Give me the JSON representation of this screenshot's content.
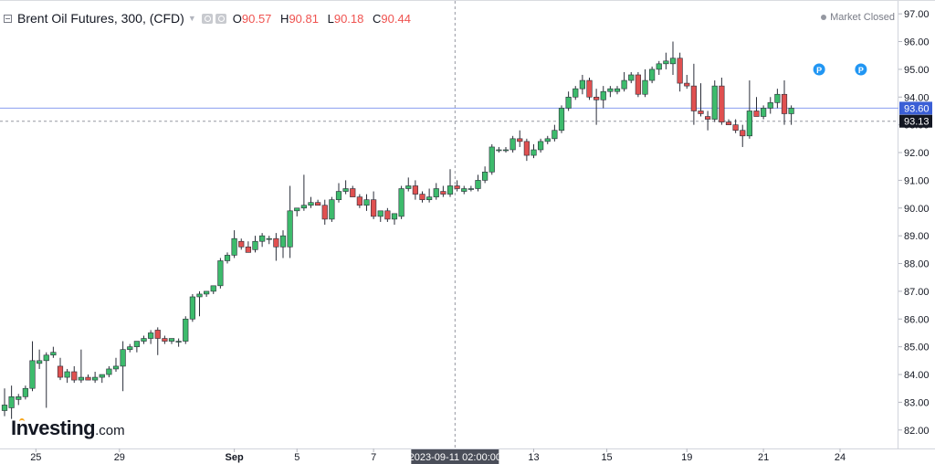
{
  "legend": {
    "title": "Brent Oil Futures, 300, (CFD)",
    "open_key": "O",
    "open": "90.57",
    "high_key": "H",
    "high": "90.81",
    "low_key": "L",
    "low": "90.18",
    "close_key": "C",
    "close": "90.44",
    "value_color": "#ef5350"
  },
  "status": "Market Closed",
  "brand": {
    "name": "Investing",
    "domain": ".com"
  },
  "crosshair_label": "2023-09-11 02:00:00",
  "icons": [
    "collapse-icon",
    "dropdown-caret-icon",
    "settings-icon",
    "source-icon",
    "status-dot-icon",
    "pivot-marker-icon"
  ],
  "colors": {
    "up": "#3dbb6c",
    "down": "#e05050",
    "wick": "#2a2e39",
    "price_line": "#8a9ef0",
    "price_label_bg": "#3b5fd6",
    "prev_close_label_bg": "#131722"
  },
  "chart_data": {
    "type": "candlestick",
    "title": "Brent Oil Futures, 300, (CFD)",
    "y_axis": {
      "ticks": [
        82.0,
        83.0,
        84.0,
        85.0,
        86.0,
        87.0,
        88.0,
        89.0,
        90.0,
        91.0,
        92.0,
        93.0,
        94.0,
        95.0,
        96.0,
        97.0
      ],
      "range": [
        81.4,
        97.4
      ],
      "side": "right"
    },
    "x_axis": {
      "ticks": [
        "25",
        "29",
        "Sep",
        "5",
        "7",
        "13",
        "15",
        "19",
        "21",
        "24"
      ]
    },
    "current_price": 93.6,
    "previous_close": 93.13,
    "markers": [
      {
        "label": "P",
        "bar": 117
      },
      {
        "label": "P",
        "bar": 123
      }
    ],
    "candles": [
      [
        82.7,
        83.5,
        82.5,
        82.9
      ],
      [
        82.8,
        83.6,
        82.4,
        83.2
      ],
      [
        83.1,
        83.3,
        82.9,
        83.2
      ],
      [
        83.2,
        83.6,
        83.1,
        83.5
      ],
      [
        83.5,
        85.2,
        83.4,
        84.5
      ],
      [
        84.4,
        84.9,
        84.2,
        84.5
      ],
      [
        84.5,
        84.8,
        82.8,
        84.7
      ],
      [
        84.7,
        85.0,
        84.6,
        84.8
      ],
      [
        84.3,
        84.6,
        83.8,
        83.9
      ],
      [
        83.9,
        84.2,
        83.7,
        84.1
      ],
      [
        84.1,
        84.3,
        83.7,
        83.8
      ],
      [
        83.8,
        84.9,
        83.7,
        83.9
      ],
      [
        83.9,
        84.0,
        83.8,
        83.8
      ],
      [
        83.8,
        84.1,
        83.7,
        83.9
      ],
      [
        83.9,
        84.0,
        83.7,
        84.0
      ],
      [
        84.0,
        84.3,
        83.9,
        84.2
      ],
      [
        84.2,
        84.6,
        84.1,
        84.3
      ],
      [
        84.3,
        85.2,
        83.4,
        84.9
      ],
      [
        84.9,
        85.1,
        84.8,
        85.0
      ],
      [
        85.0,
        85.2,
        84.8,
        85.2
      ],
      [
        85.2,
        85.4,
        85.1,
        85.3
      ],
      [
        85.3,
        85.6,
        85.1,
        85.5
      ],
      [
        85.6,
        85.7,
        84.7,
        85.3
      ],
      [
        85.3,
        85.4,
        85.1,
        85.2
      ],
      [
        85.2,
        85.3,
        85.1,
        85.3
      ],
      [
        85.2,
        85.3,
        85.0,
        85.2
      ],
      [
        85.2,
        86.1,
        85.1,
        86.0
      ],
      [
        86.0,
        86.9,
        85.9,
        86.8
      ],
      [
        86.8,
        87.0,
        86.1,
        86.9
      ],
      [
        86.9,
        87.0,
        86.8,
        87.0
      ],
      [
        87.0,
        87.2,
        86.9,
        87.2
      ],
      [
        87.2,
        88.2,
        87.1,
        88.1
      ],
      [
        88.1,
        88.4,
        88.0,
        88.3
      ],
      [
        88.3,
        89.2,
        88.2,
        88.9
      ],
      [
        88.8,
        88.9,
        88.5,
        88.6
      ],
      [
        88.6,
        88.8,
        88.4,
        88.4
      ],
      [
        88.5,
        89.0,
        88.4,
        88.8
      ],
      [
        88.8,
        89.1,
        88.6,
        89.0
      ],
      [
        88.9,
        89.0,
        88.7,
        88.9
      ],
      [
        88.9,
        89.1,
        88.1,
        88.6
      ],
      [
        88.6,
        89.2,
        88.2,
        89.0
      ],
      [
        88.6,
        90.8,
        88.2,
        89.9
      ],
      [
        89.9,
        90.0,
        89.7,
        90.0
      ],
      [
        90.0,
        91.2,
        89.9,
        90.1
      ],
      [
        90.1,
        90.4,
        90.0,
        90.2
      ],
      [
        90.2,
        90.3,
        90.1,
        90.1
      ],
      [
        90.1,
        90.3,
        89.4,
        89.6
      ],
      [
        89.6,
        90.4,
        89.5,
        90.3
      ],
      [
        90.3,
        90.9,
        90.2,
        90.6
      ],
      [
        90.6,
        91.0,
        90.5,
        90.7
      ],
      [
        90.7,
        90.8,
        90.5,
        90.4
      ],
      [
        90.4,
        90.5,
        90.0,
        90.1
      ],
      [
        90.1,
        90.5,
        89.9,
        90.3
      ],
      [
        90.3,
        90.6,
        89.6,
        89.7
      ],
      [
        89.7,
        89.9,
        89.5,
        89.9
      ],
      [
        89.9,
        90.0,
        89.5,
        89.6
      ],
      [
        89.6,
        89.8,
        89.4,
        89.8
      ],
      [
        89.7,
        90.8,
        89.6,
        90.7
      ],
      [
        90.7,
        91.1,
        90.6,
        90.8
      ],
      [
        90.8,
        91.0,
        90.3,
        90.5
      ],
      [
        90.5,
        90.6,
        90.2,
        90.3
      ],
      [
        90.3,
        90.7,
        90.2,
        90.4
      ],
      [
        90.4,
        90.9,
        90.3,
        90.7
      ],
      [
        90.6,
        90.8,
        90.4,
        90.5
      ],
      [
        90.5,
        91.4,
        90.4,
        90.8
      ],
      [
        90.8,
        91.0,
        90.6,
        90.7
      ],
      [
        90.6,
        90.8,
        90.5,
        90.7
      ],
      [
        90.7,
        90.8,
        90.6,
        90.7
      ],
      [
        90.7,
        91.2,
        90.6,
        91.0
      ],
      [
        91.0,
        91.5,
        90.9,
        91.3
      ],
      [
        91.3,
        92.3,
        91.2,
        92.2
      ],
      [
        92.1,
        92.2,
        92.0,
        92.1
      ],
      [
        92.1,
        92.2,
        92.0,
        92.1
      ],
      [
        92.1,
        92.6,
        92.0,
        92.5
      ],
      [
        92.5,
        92.8,
        92.2,
        92.4
      ],
      [
        92.4,
        92.5,
        91.7,
        91.9
      ],
      [
        91.9,
        92.3,
        91.8,
        92.1
      ],
      [
        92.1,
        92.5,
        92.0,
        92.4
      ],
      [
        92.4,
        92.6,
        92.3,
        92.5
      ],
      [
        92.5,
        93.0,
        92.4,
        92.8
      ],
      [
        92.8,
        93.7,
        92.7,
        93.6
      ],
      [
        93.6,
        94.2,
        93.5,
        94.0
      ],
      [
        94.0,
        94.4,
        93.9,
        94.3
      ],
      [
        94.3,
        94.8,
        94.1,
        94.6
      ],
      [
        94.6,
        94.7,
        93.9,
        94.0
      ],
      [
        94.0,
        94.3,
        93.0,
        93.9
      ],
      [
        93.9,
        94.4,
        93.6,
        94.2
      ],
      [
        94.2,
        94.4,
        94.0,
        94.3
      ],
      [
        94.2,
        94.4,
        94.1,
        94.3
      ],
      [
        94.3,
        94.9,
        94.2,
        94.6
      ],
      [
        94.6,
        94.9,
        94.5,
        94.8
      ],
      [
        94.8,
        94.9,
        94.0,
        94.1
      ],
      [
        94.1,
        95.0,
        94.0,
        94.6
      ],
      [
        94.6,
        95.1,
        94.5,
        95.0
      ],
      [
        95.0,
        95.3,
        94.8,
        95.2
      ],
      [
        95.2,
        95.6,
        95.0,
        95.3
      ],
      [
        95.2,
        96.0,
        94.8,
        95.4
      ],
      [
        95.4,
        95.6,
        94.2,
        94.5
      ],
      [
        94.5,
        94.8,
        94.3,
        94.4
      ],
      [
        94.4,
        95.2,
        93.0,
        93.5
      ],
      [
        93.5,
        94.5,
        93.3,
        93.4
      ],
      [
        93.3,
        93.5,
        92.8,
        93.2
      ],
      [
        93.2,
        94.6,
        93.1,
        94.4
      ],
      [
        94.4,
        94.7,
        93.0,
        93.1
      ],
      [
        93.1,
        93.2,
        93.0,
        93.0
      ],
      [
        93.0,
        93.2,
        92.7,
        92.8
      ],
      [
        92.8,
        93.0,
        92.2,
        92.6
      ],
      [
        92.6,
        94.6,
        92.5,
        93.5
      ],
      [
        93.5,
        94.0,
        93.3,
        93.3
      ],
      [
        93.3,
        93.7,
        93.2,
        93.6
      ],
      [
        93.6,
        94.0,
        93.4,
        93.8
      ],
      [
        93.8,
        94.3,
        93.6,
        94.1
      ],
      [
        94.1,
        94.6,
        93.0,
        93.4
      ],
      [
        93.4,
        93.7,
        93.0,
        93.6
      ]
    ]
  }
}
